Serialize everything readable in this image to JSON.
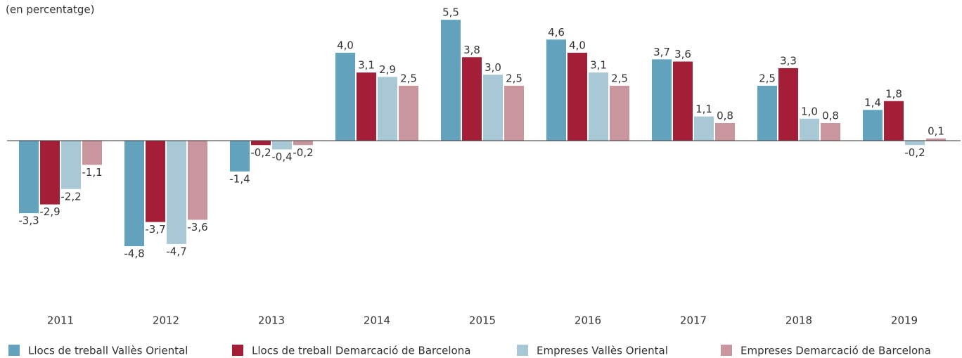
{
  "chart_data": {
    "type": "bar",
    "subtitle": "(en percentatge)",
    "categories": [
      "2011",
      "2012",
      "2013",
      "2014",
      "2015",
      "2016",
      "2017",
      "2018",
      "2019"
    ],
    "series": [
      {
        "name": "Llocs de treball Vallès Oriental",
        "color": "#62a2bd",
        "values": [
          -3.3,
          -4.8,
          -1.4,
          4.0,
          5.5,
          4.6,
          3.7,
          2.5,
          1.4
        ],
        "value_labels": [
          "-3,3",
          "-4,8",
          "-1,4",
          "4,0",
          "5,5",
          "4,6",
          "3,7",
          "2,5",
          "1,4"
        ]
      },
      {
        "name": "Llocs de treball Demarcació de Barcelona",
        "color": "#a51e37",
        "values": [
          -2.9,
          -3.7,
          -0.2,
          3.1,
          3.8,
          4.0,
          3.6,
          3.3,
          1.8
        ],
        "value_labels": [
          "-2,9",
          "-3,7",
          "-0,2",
          "3,1",
          "3,8",
          "4,0",
          "3,6",
          "3,3",
          "1,8"
        ]
      },
      {
        "name": "Empreses Vallès Oriental",
        "color": "#a7c8d4",
        "values": [
          -2.2,
          -4.7,
          -0.4,
          2.9,
          3.0,
          3.1,
          1.1,
          1.0,
          -0.2
        ],
        "value_labels": [
          "-2,2",
          "-4,7",
          "-0,4",
          "2,9",
          "3,0",
          "3,1",
          "1,1",
          "1,0",
          "-0,2"
        ]
      },
      {
        "name": "Empreses Demarcació de Barcelona",
        "color": "#c8969c",
        "values": [
          -1.1,
          -3.6,
          -0.2,
          2.5,
          2.5,
          2.5,
          0.8,
          0.8,
          0.1
        ],
        "value_labels": [
          "-1,1",
          "-3,6",
          "-0,2",
          "2,5",
          "2,5",
          "2,5",
          "0,8",
          "0,8",
          "0,1"
        ]
      }
    ],
    "ylim": [
      -6.0,
      6.4
    ]
  }
}
